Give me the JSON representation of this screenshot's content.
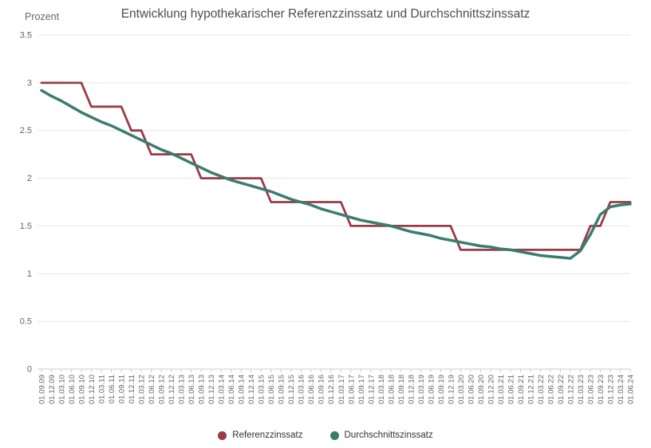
{
  "page": {
    "title": "Entwicklung hypothekarischer Referenzzinssatz und Durchschnittszinssatz",
    "y_axis_title": "Prozent"
  },
  "chart_data": {
    "type": "line",
    "title": "Entwicklung hypothekarischer Referenzzinssatz und Durchschnittszinssatz",
    "ylabel": "Prozent",
    "xlabel": "",
    "ylim": [
      0,
      3.5
    ],
    "ytick_step": 0.5,
    "grid": true,
    "legend_position": "bottom",
    "grid_color": "#e7e7e7",
    "axis_line_color": "#cccccc",
    "tick_label_color": "#666666",
    "categories": [
      "01.09.09",
      "01.12.09",
      "01.03.10",
      "01.06.10",
      "01.09.10",
      "01.12.10",
      "01.03.11",
      "01.06.11",
      "01.09.11",
      "01.12.11",
      "01.03.12",
      "01.06.12",
      "01.09.12",
      "01.12.12",
      "01.03.13",
      "01.06.13",
      "01.09.13",
      "01.12.13",
      "01.03.14",
      "01.06.14",
      "01.09.14",
      "01.12.14",
      "01.03.15",
      "01.06.15",
      "01.09.15",
      "01.12.15",
      "01.03.16",
      "01.06.16",
      "01.09.16",
      "01.12.16",
      "01.03.17",
      "01.06.17",
      "01.09.17",
      "01.12.17",
      "01.03.18",
      "01.06.18",
      "01.09.18",
      "01.12.18",
      "01.03.19",
      "01.06.19",
      "01.09.19",
      "01.12.19",
      "01.03.20",
      "01.06.20",
      "01.09.20",
      "01.12.20",
      "01.03.21",
      "01.06.21",
      "01.09.21",
      "01.12.21",
      "01.03.22",
      "01.06.22",
      "01.09.22",
      "01.12.22",
      "01.03.23",
      "01.06.23",
      "01.09.23",
      "01.12.23",
      "01.03.24",
      "01.06.24"
    ],
    "series": [
      {
        "name": "Referenzzinssatz",
        "color": "#9a3c46",
        "line_width": 2.8,
        "values": [
          3.0,
          3.0,
          3.0,
          3.0,
          3.0,
          2.75,
          2.75,
          2.75,
          2.75,
          2.5,
          2.5,
          2.25,
          2.25,
          2.25,
          2.25,
          2.25,
          2.0,
          2.0,
          2.0,
          2.0,
          2.0,
          2.0,
          2.0,
          1.75,
          1.75,
          1.75,
          1.75,
          1.75,
          1.75,
          1.75,
          1.75,
          1.5,
          1.5,
          1.5,
          1.5,
          1.5,
          1.5,
          1.5,
          1.5,
          1.5,
          1.5,
          1.5,
          1.25,
          1.25,
          1.25,
          1.25,
          1.25,
          1.25,
          1.25,
          1.25,
          1.25,
          1.25,
          1.25,
          1.25,
          1.25,
          1.5,
          1.5,
          1.75,
          1.75,
          1.75
        ]
      },
      {
        "name": "Durchschnittszinssatz",
        "color": "#3a7d70",
        "line_width": 3.5,
        "values": [
          2.92,
          2.86,
          2.81,
          2.75,
          2.69,
          2.64,
          2.59,
          2.55,
          2.5,
          2.45,
          2.4,
          2.35,
          2.3,
          2.26,
          2.21,
          2.16,
          2.11,
          2.06,
          2.02,
          1.98,
          1.95,
          1.92,
          1.89,
          1.86,
          1.82,
          1.78,
          1.75,
          1.72,
          1.68,
          1.65,
          1.62,
          1.59,
          1.56,
          1.54,
          1.52,
          1.5,
          1.47,
          1.44,
          1.42,
          1.4,
          1.37,
          1.35,
          1.33,
          1.31,
          1.29,
          1.28,
          1.26,
          1.25,
          1.23,
          1.21,
          1.19,
          1.18,
          1.17,
          1.16,
          1.24,
          1.41,
          1.62,
          1.7,
          1.72,
          1.73
        ]
      }
    ]
  },
  "legend": {
    "items": [
      {
        "label": "Referenzzinssatz"
      },
      {
        "label": "Durchschnittszinssatz"
      }
    ]
  }
}
